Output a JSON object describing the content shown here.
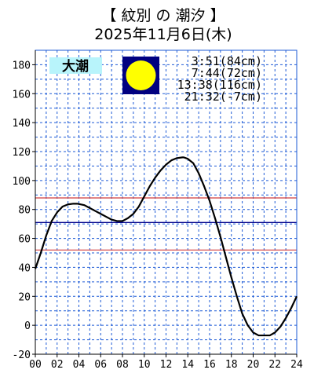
{
  "header": {
    "title": "【 紋別 の 潮汐 】",
    "date": "2025年11月6日(木)"
  },
  "badge": {
    "label": "大潮",
    "bg_color": "#b8f4fb",
    "moon_bg": "#000080",
    "moon_color": "#ffff00"
  },
  "tide_events": [
    "3:51(84cm)",
    "7:44(72cm)",
    "13:38(116cm)",
    "21:32(-7cm)"
  ],
  "colors": {
    "grid": "#1e5bd6",
    "curve": "#000000",
    "ref_line_red": "#d23c3c",
    "ref_line_blue": "#00008b"
  },
  "chart_data": {
    "type": "line",
    "xlim": [
      0,
      24
    ],
    "ylim": [
      -20,
      190
    ],
    "x_tick_labels": [
      "00",
      "02",
      "04",
      "06",
      "08",
      "10",
      "12",
      "14",
      "16",
      "18",
      "20",
      "22",
      "24"
    ],
    "y_tick_labels": [
      "-20",
      "0",
      "20",
      "40",
      "60",
      "80",
      "100",
      "120",
      "140",
      "160",
      "180"
    ],
    "grid": true,
    "reference_lines": [
      88,
      71,
      52
    ],
    "series": [
      {
        "x": [
          0,
          0.5,
          1,
          1.5,
          2,
          2.5,
          3,
          3.5,
          3.85,
          4.5,
          5,
          5.5,
          6,
          6.5,
          7,
          7.5,
          7.73,
          8,
          8.5,
          9,
          9.5,
          10,
          10.5,
          11,
          11.5,
          12,
          12.5,
          13,
          13.5,
          13.63,
          14,
          14.5,
          15,
          15.5,
          16,
          16.5,
          17,
          17.5,
          18,
          18.5,
          19,
          19.5,
          20,
          20.5,
          21,
          21.53,
          22,
          22.5,
          23,
          23.5,
          24
        ],
        "y": [
          39,
          50,
          62,
          72,
          78,
          82,
          83.5,
          84,
          84,
          83,
          81,
          79,
          77,
          75,
          73,
          72,
          72,
          72,
          74,
          77,
          82,
          89,
          96,
          102,
          107,
          111,
          114,
          115.5,
          116,
          116,
          115,
          112,
          105,
          96,
          86,
          74,
          61,
          47,
          33,
          20,
          8,
          0,
          -5,
          -7,
          -7,
          -7,
          -5,
          -1,
          5,
          12,
          20
        ]
      }
    ]
  }
}
